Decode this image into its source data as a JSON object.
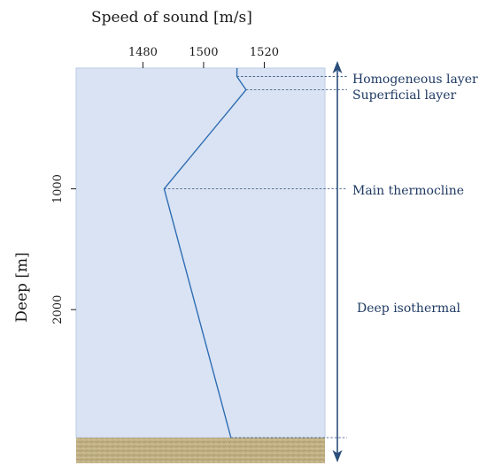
{
  "chart_data": {
    "type": "line",
    "xlabel": "Speed of sound [m/s]",
    "ylabel": "Deep [m]",
    "x_ticks": [
      1480,
      1500,
      1520
    ],
    "y_ticks": [
      1000,
      2000
    ],
    "xlim": [
      1458,
      1540
    ],
    "ylim": [
      0,
      3060
    ],
    "y_inverted": true,
    "x_axis_position": "top",
    "grid": false,
    "series": [
      {
        "x": [
          1511,
          1511,
          1514,
          1487,
          1509
        ],
        "y": [
          0,
          70,
          180,
          1000,
          3060
        ]
      }
    ],
    "layers": [
      {
        "label": "Homogeneous layer",
        "depth": 70
      },
      {
        "label": "Superficial layer",
        "depth": 180
      },
      {
        "label": "Main thermocline",
        "depth": 1000
      },
      {
        "label": "Deep isothermal",
        "depth": 3060
      }
    ],
    "colors": {
      "water": "#dae3f3",
      "line": "#2e6db4",
      "seabed": "#c9b98f",
      "arrow": "#2c4f7c",
      "label": "#1f3a63"
    }
  }
}
